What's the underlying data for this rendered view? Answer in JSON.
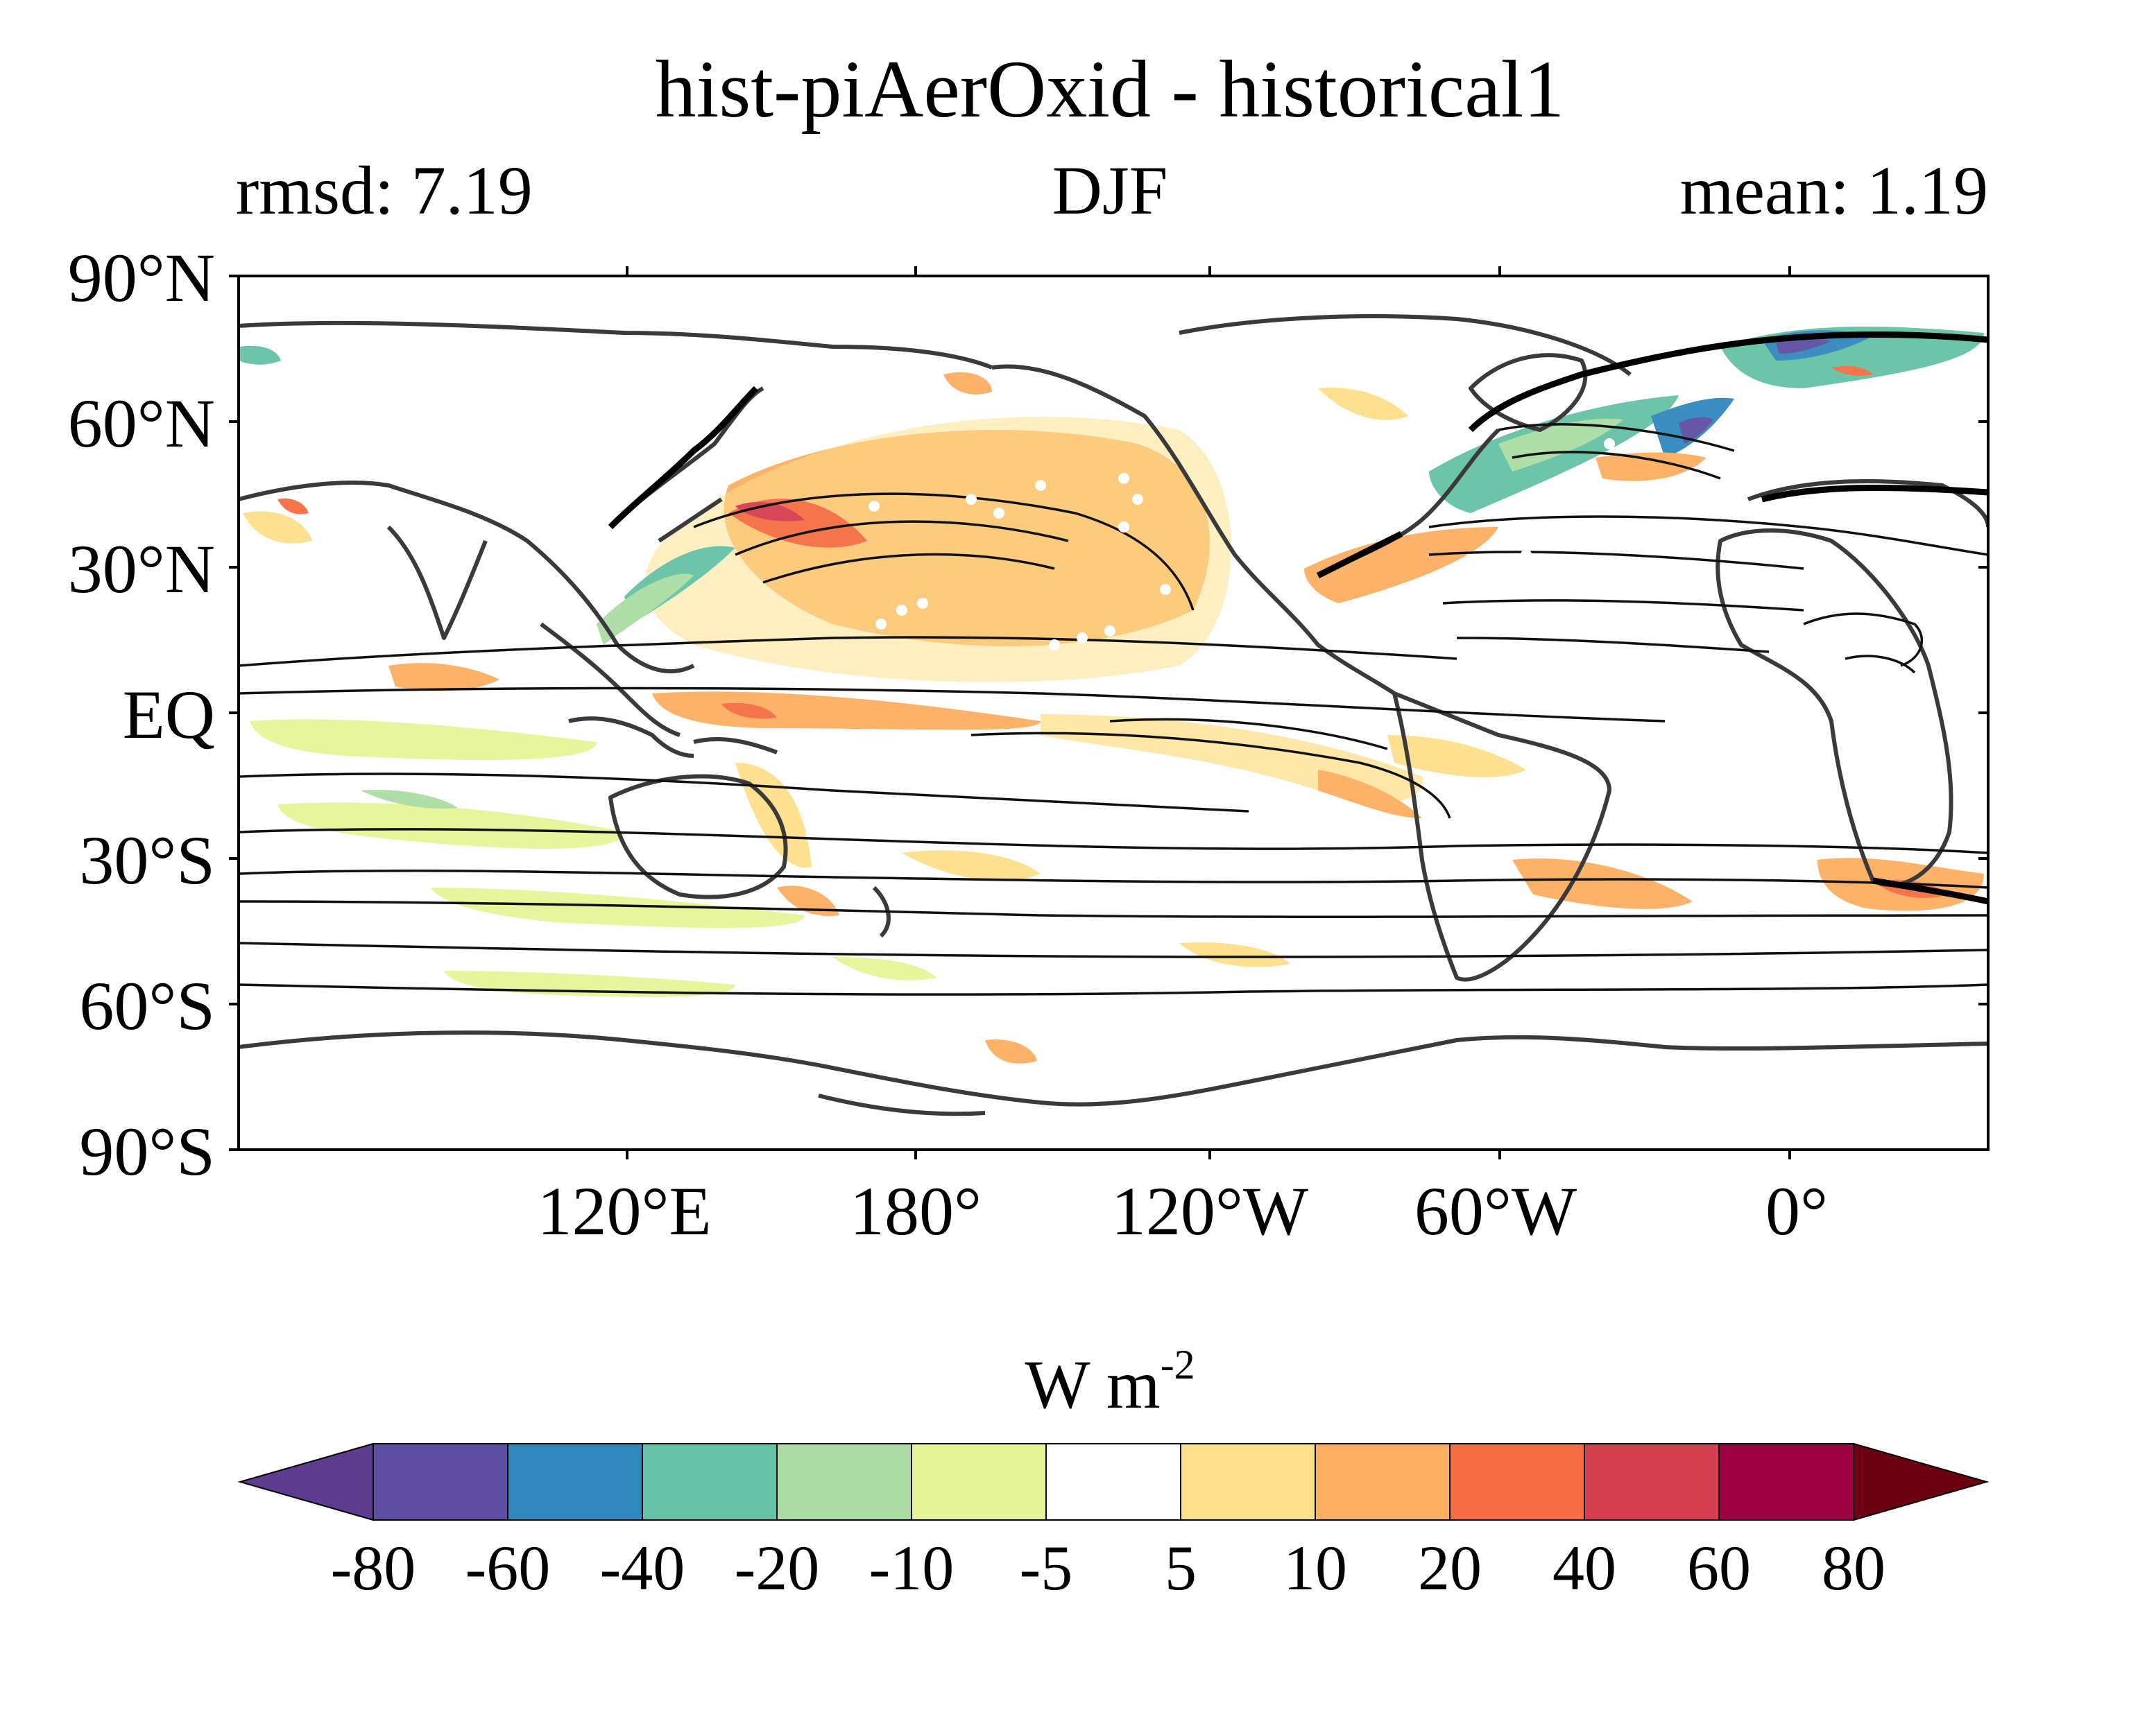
{
  "title": "hist-piAerOxid - historical1",
  "left_label": "rmsd: 7.19",
  "center_label": "DJF",
  "right_label": "mean: 1.19",
  "lat_ticks": [
    "90°N",
    "60°N",
    "30°N",
    "EQ",
    "30°S",
    "60°S",
    "90°S"
  ],
  "lon_ticks": [
    "120°E",
    "180°",
    "120°W",
    "60°W",
    "0°"
  ],
  "colorbar": {
    "unit_main": "W m",
    "unit_sup": "-2",
    "labels": [
      "-80",
      "-60",
      "-40",
      "-20",
      "-10",
      "-5",
      "5",
      "10",
      "20",
      "40",
      "60",
      "80"
    ],
    "low_extend_color": "#5e3c8f",
    "high_extend_color": "#6b0010",
    "colors": [
      "#5e4fa2",
      "#3288bd",
      "#66c2a5",
      "#abdda4",
      "#e6f598",
      "#ffffff",
      "#fee08b",
      "#fdae61",
      "#f46d43",
      "#d53e4f",
      "#9e0142"
    ]
  }
}
